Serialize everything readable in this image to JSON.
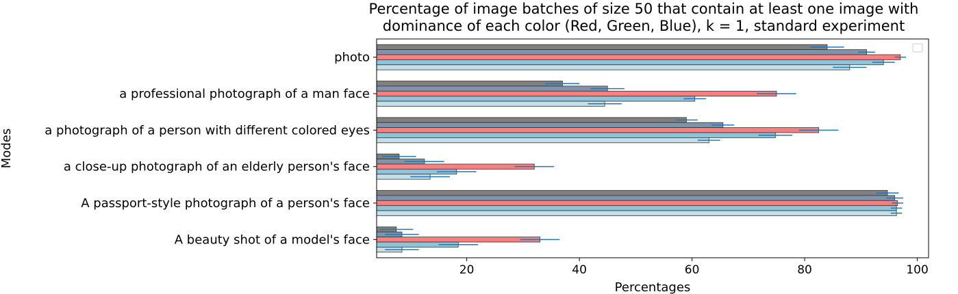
{
  "chart_data": {
    "type": "bar",
    "orientation": "horizontal",
    "title_line1": "Percentage of image batches of size 50 that contain at least one image with",
    "title_line2": "dominance of each color (Red, Green, Blue), k = 1, standard experiment",
    "xlabel": "Percentages",
    "ylabel": "Modes",
    "xlim": [
      4,
      102
    ],
    "xticks": [
      20,
      40,
      60,
      80,
      100
    ],
    "legend": "top-right",
    "legend_entries": [],
    "error_color": "#1f77b4",
    "edge_color": "#333333",
    "categories": [
      "photo",
      "a professional photograph of a man face",
      "a photograph of a person with different colored eyes",
      "a close-up photograph of an elderly person's face",
      "A passport-style photograph of a person's face",
      "A beauty shot of a model's face"
    ],
    "series": [
      {
        "color": "#808080",
        "values": [
          84.0,
          37.0,
          59.0,
          8.0,
          94.7,
          7.5
        ],
        "errors": [
          3.0,
          3.0,
          2.0,
          3.0,
          2.0,
          3.0
        ]
      },
      {
        "color": "#7f93ad",
        "values": [
          91.0,
          45.0,
          65.5,
          12.5,
          96.0,
          8.5
        ],
        "errors": [
          1.5,
          3.0,
          2.0,
          3.5,
          1.5,
          3.0
        ]
      },
      {
        "color": "#f77f7f",
        "values": [
          97.0,
          75.0,
          82.5,
          32.0,
          96.5,
          33.0
        ],
        "errors": [
          1.0,
          3.5,
          3.5,
          3.5,
          1.0,
          3.5
        ]
      },
      {
        "color": "#8fc4d8",
        "values": [
          94.0,
          60.5,
          74.8,
          18.2,
          96.3,
          18.5
        ],
        "errors": [
          2.0,
          2.0,
          3.0,
          3.5,
          1.0,
          3.5
        ]
      },
      {
        "color": "#c5dfe8",
        "values": [
          88.0,
          44.5,
          63.0,
          13.5,
          96.3,
          8.5
        ],
        "errors": [
          3.0,
          3.0,
          2.0,
          3.5,
          1.0,
          3.0
        ]
      }
    ]
  }
}
